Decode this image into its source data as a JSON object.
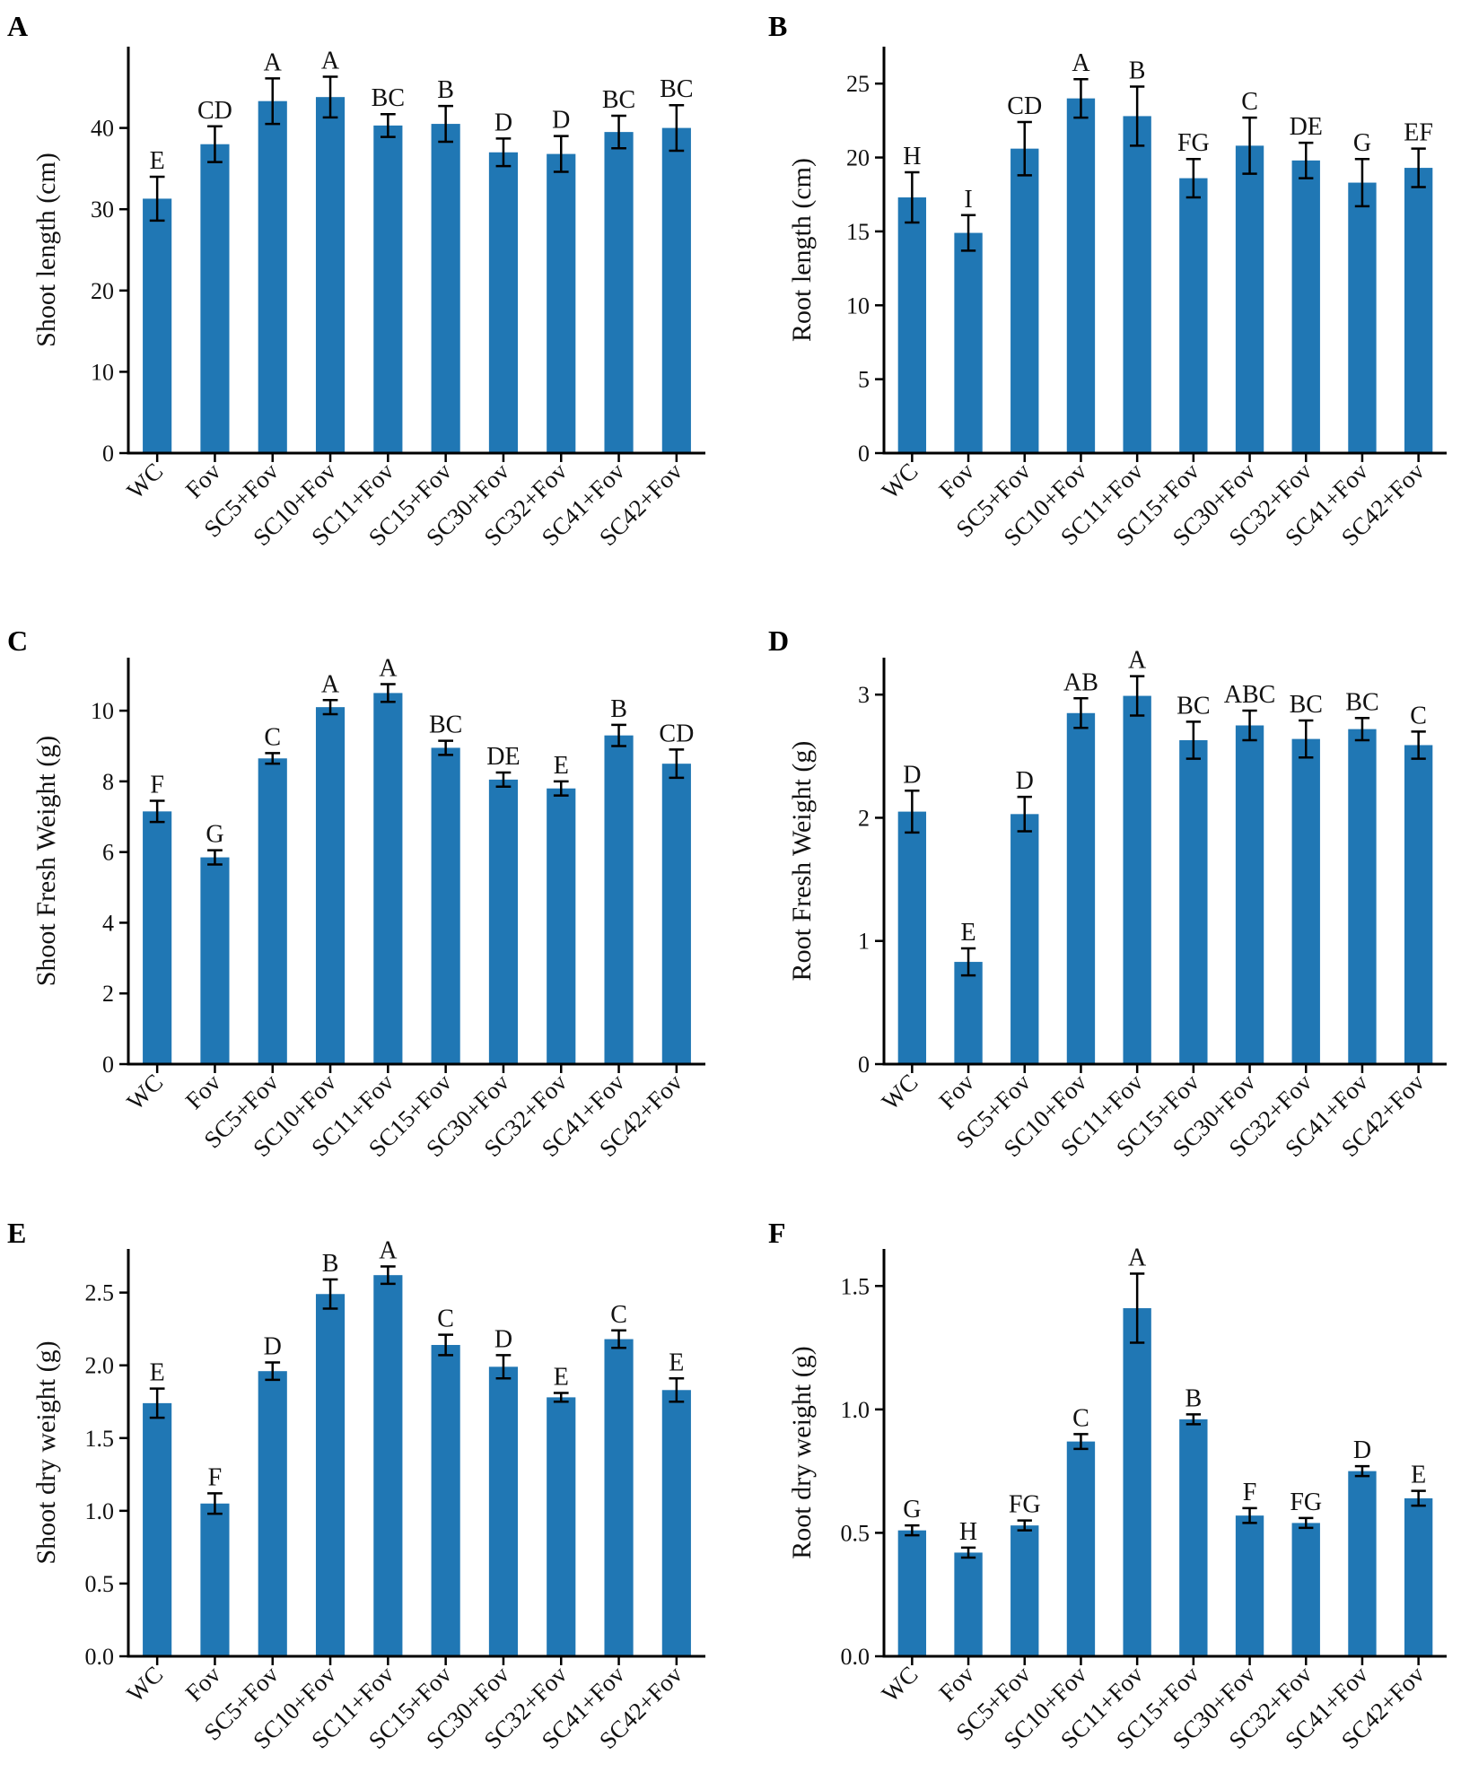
{
  "chart_data": [
    {
      "panel": "A",
      "type": "bar",
      "ylabel": "Shoot length (cm)",
      "ylim": [
        0,
        50
      ],
      "yticks": [
        0,
        10,
        20,
        30,
        40
      ],
      "ytick_labels": [
        "0",
        "10",
        "20",
        "30",
        "40"
      ],
      "categories": [
        "WC",
        "Fov",
        "SC5+Fov",
        "SC10+Fov",
        "SC11+Fov",
        "SC15+Fov",
        "SC30+Fov",
        "SC32+Fov",
        "SC41+Fov",
        "SC42+Fov"
      ],
      "values": [
        31.3,
        38.0,
        43.3,
        43.8,
        40.3,
        40.5,
        37.0,
        36.8,
        39.5,
        40.0
      ],
      "errors": [
        2.7,
        2.2,
        2.8,
        2.5,
        1.4,
        2.2,
        1.7,
        2.2,
        2.0,
        2.8
      ],
      "letters": [
        "E",
        "CD",
        "A",
        "A",
        "BC",
        "B",
        "D",
        "D",
        "BC",
        "BC"
      ],
      "color": "#2077b4"
    },
    {
      "panel": "B",
      "type": "bar",
      "ylabel": "Root length (cm)",
      "ylim": [
        0,
        27.5
      ],
      "yticks": [
        0,
        5,
        10,
        15,
        20,
        25
      ],
      "ytick_labels": [
        "0",
        "5",
        "10",
        "15",
        "20",
        "25"
      ],
      "categories": [
        "WC",
        "Fov",
        "SC5+Fov",
        "SC10+Fov",
        "SC11+Fov",
        "SC15+Fov",
        "SC30+Fov",
        "SC32+Fov",
        "SC41+Fov",
        "SC42+Fov"
      ],
      "values": [
        17.3,
        14.9,
        20.6,
        24.0,
        22.8,
        18.6,
        20.8,
        19.8,
        18.3,
        19.3
      ],
      "errors": [
        1.7,
        1.2,
        1.8,
        1.3,
        2.0,
        1.3,
        1.9,
        1.2,
        1.6,
        1.3
      ],
      "letters": [
        "H",
        "I",
        "CD",
        "A",
        "B",
        "FG",
        "C",
        "DE",
        "G",
        "EF"
      ],
      "color": "#2077b4"
    },
    {
      "panel": "C",
      "type": "bar",
      "ylabel": "Shoot Fresh Weight (g)",
      "ylim": [
        0,
        11.5
      ],
      "yticks": [
        0,
        2,
        4,
        6,
        8,
        10
      ],
      "ytick_labels": [
        "0",
        "2",
        "4",
        "6",
        "8",
        "10"
      ],
      "categories": [
        "WC",
        "Fov",
        "SC5+Fov",
        "SC10+Fov",
        "SC11+Fov",
        "SC15+Fov",
        "SC30+Fov",
        "SC32+Fov",
        "SC41+Fov",
        "SC42+Fov"
      ],
      "values": [
        7.15,
        5.85,
        8.65,
        10.1,
        10.5,
        8.95,
        8.05,
        7.8,
        9.3,
        8.5
      ],
      "errors": [
        0.3,
        0.2,
        0.15,
        0.2,
        0.25,
        0.2,
        0.2,
        0.2,
        0.3,
        0.4
      ],
      "letters": [
        "F",
        "G",
        "C",
        "A",
        "A",
        "BC",
        "DE",
        "E",
        "B",
        "CD"
      ],
      "color": "#2077b4"
    },
    {
      "panel": "D",
      "type": "bar",
      "ylabel": "Root Fresh Weight (g)",
      "ylim": [
        0,
        3.3
      ],
      "yticks": [
        0,
        1,
        2,
        3
      ],
      "ytick_labels": [
        "0",
        "1",
        "2",
        "3"
      ],
      "categories": [
        "WC",
        "Fov",
        "SC5+Fov",
        "SC10+Fov",
        "SC11+Fov",
        "SC15+Fov",
        "SC30+Fov",
        "SC32+Fov",
        "SC41+Fov",
        "SC42+Fov"
      ],
      "values": [
        2.05,
        0.83,
        2.03,
        2.85,
        2.99,
        2.63,
        2.75,
        2.64,
        2.72,
        2.59
      ],
      "errors": [
        0.17,
        0.11,
        0.14,
        0.12,
        0.16,
        0.15,
        0.12,
        0.15,
        0.09,
        0.11
      ],
      "letters": [
        "D",
        "E",
        "D",
        "AB",
        "A",
        "BC",
        "ABC",
        "BC",
        "BC",
        "C"
      ],
      "color": "#2077b4"
    },
    {
      "panel": "E",
      "type": "bar",
      "ylabel": "Shoot dry weight (g)",
      "ylim": [
        0,
        2.8
      ],
      "yticks": [
        0.0,
        0.5,
        1.0,
        1.5,
        2.0,
        2.5
      ],
      "ytick_labels": [
        "0.0",
        "0.5",
        "1.0",
        "1.5",
        "2.0",
        "2.5"
      ],
      "categories": [
        "WC",
        "Fov",
        "SC5+Fov",
        "SC10+Fov",
        "SC11+Fov",
        "SC15+Fov",
        "SC30+Fov",
        "SC32+Fov",
        "SC41+Fov",
        "SC42+Fov"
      ],
      "values": [
        1.74,
        1.05,
        1.96,
        2.49,
        2.62,
        2.14,
        1.99,
        1.78,
        2.18,
        1.83
      ],
      "errors": [
        0.1,
        0.07,
        0.06,
        0.1,
        0.06,
        0.07,
        0.08,
        0.03,
        0.06,
        0.08
      ],
      "letters": [
        "E",
        "F",
        "D",
        "B",
        "A",
        "C",
        "D",
        "E",
        "C",
        "E"
      ],
      "color": "#2077b4"
    },
    {
      "panel": "F",
      "type": "bar",
      "ylabel": "Root dry weight (g)",
      "ylim": [
        0,
        1.65
      ],
      "yticks": [
        0.0,
        0.5,
        1.0,
        1.5
      ],
      "ytick_labels": [
        "0.0",
        "0.5",
        "1.0",
        "1.5"
      ],
      "categories": [
        "WC",
        "Fov",
        "SC5+Fov",
        "SC10+Fov",
        "SC11+Fov",
        "SC15+Fov",
        "SC30+Fov",
        "SC32+Fov",
        "SC41+Fov",
        "SC42+Fov"
      ],
      "values": [
        0.51,
        0.42,
        0.53,
        0.87,
        1.41,
        0.96,
        0.57,
        0.54,
        0.75,
        0.64
      ],
      "errors": [
        0.02,
        0.02,
        0.02,
        0.03,
        0.14,
        0.02,
        0.03,
        0.02,
        0.02,
        0.03
      ],
      "letters": [
        "G",
        "H",
        "FG",
        "C",
        "A",
        "B",
        "F",
        "FG",
        "D",
        "E"
      ],
      "color": "#2077b4"
    }
  ]
}
